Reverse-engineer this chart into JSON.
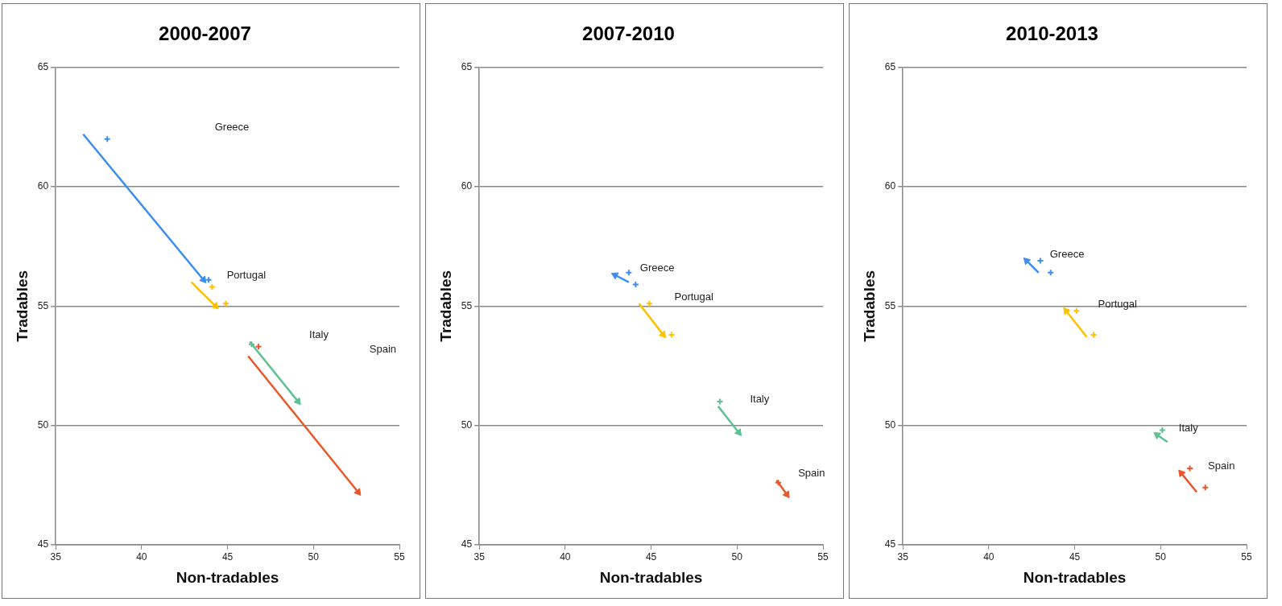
{
  "chart_data": [
    {
      "type": "scatter",
      "title": "2000-2007",
      "xlabel": "Non-tradables",
      "ylabel": "Tradables",
      "xlim": [
        35,
        55
      ],
      "xticks": [
        35,
        40,
        45,
        50,
        55
      ],
      "ylim": [
        45,
        65
      ],
      "yticks": [
        45,
        50,
        55,
        60,
        65
      ],
      "grid": "y",
      "line_style": "solid",
      "series": [
        {
          "type": "line",
          "name": "Greece",
          "color": "#3d8ef0",
          "x": [
            36.6,
            43.6
          ],
          "values": [
            62.2,
            56.1
          ]
        },
        {
          "type": "scatter",
          "marker": "cross",
          "color": "#3d8ef0",
          "x": [
            38.0,
            43.9
          ],
          "values": [
            62.0,
            56.1
          ]
        },
        {
          "type": "line",
          "name": "Portugal",
          "color": "#ffc000",
          "x": [
            42.9,
            44.3
          ],
          "values": [
            56.0,
            55.0
          ]
        },
        {
          "type": "scatter",
          "marker": "cross",
          "color": "#ffc000",
          "x": [
            44.1,
            44.9
          ],
          "values": [
            55.8,
            55.1
          ]
        },
        {
          "type": "line",
          "name": "Italy",
          "color": "#5fbf95",
          "x": [
            46.3,
            49.1
          ],
          "values": [
            53.5,
            51.0
          ]
        },
        {
          "type": "scatter",
          "marker": "cross",
          "color": "#5fbf95",
          "x": [
            46.4
          ],
          "values": [
            53.4
          ]
        },
        {
          "type": "line",
          "name": "Spain",
          "color": "#e8582a",
          "x": [
            46.2,
            52.6
          ],
          "values": [
            52.9,
            47.2
          ]
        },
        {
          "type": "scatter",
          "marker": "cross",
          "color": "#e8582a",
          "x": [
            46.8
          ],
          "values": [
            53.3
          ]
        }
      ]
    },
    {
      "type": "scatter",
      "title": "2007-2010",
      "xlabel": "Non-tradables",
      "ylabel": "Tradables",
      "xlim": [
        35,
        55
      ],
      "xticks": [
        35,
        40,
        45,
        50,
        55
      ],
      "ylim": [
        45,
        65
      ],
      "yticks": [
        45,
        50,
        55,
        60,
        65
      ],
      "grid": "y",
      "line_style": "solid",
      "series": [
        {
          "type": "line",
          "name": "Greece",
          "color": "#3d8ef0",
          "x": [
            43.7,
            42.9
          ],
          "values": [
            56.0,
            56.3
          ]
        },
        {
          "type": "scatter",
          "marker": "cross",
          "color": "#3d8ef0",
          "x": [
            43.7,
            44.1
          ],
          "values": [
            56.4,
            55.9
          ]
        },
        {
          "type": "line",
          "name": "Portugal",
          "color": "#ffc000",
          "x": [
            44.3,
            45.7
          ],
          "values": [
            55.1,
            53.8
          ]
        },
        {
          "type": "scatter",
          "marker": "cross",
          "color": "#ffc000",
          "x": [
            44.9,
            46.2
          ],
          "values": [
            55.1,
            53.8
          ]
        },
        {
          "type": "line",
          "name": "Italy",
          "color": "#5fbf95",
          "x": [
            48.9,
            50.1
          ],
          "values": [
            50.8,
            49.7
          ]
        },
        {
          "type": "scatter",
          "marker": "cross",
          "color": "#5fbf95",
          "x": [
            49.0
          ],
          "values": [
            51.0
          ]
        },
        {
          "type": "line",
          "name": "Spain",
          "color": "#e8582a",
          "x": [
            52.3,
            52.9
          ],
          "values": [
            47.7,
            47.1
          ]
        },
        {
          "type": "scatter",
          "marker": "cross",
          "color": "#e8582a",
          "x": [
            52.4
          ],
          "values": [
            47.6
          ]
        }
      ]
    },
    {
      "type": "scatter",
      "title": "2010-2013",
      "xlabel": "Non-tradables",
      "ylabel": "Tradables",
      "xlim": [
        35,
        55
      ],
      "xticks": [
        35,
        40,
        45,
        50,
        55
      ],
      "ylim": [
        45,
        65
      ],
      "yticks": [
        45,
        50,
        55,
        60,
        65
      ],
      "grid": "y",
      "line_style": "solid",
      "series": [
        {
          "type": "line",
          "name": "Greece",
          "color": "#3d8ef0",
          "x": [
            42.9,
            42.2
          ],
          "values": [
            56.4,
            56.9
          ]
        },
        {
          "type": "scatter",
          "marker": "cross",
          "color": "#3d8ef0",
          "x": [
            43.0,
            43.6
          ],
          "values": [
            56.9,
            56.4
          ]
        },
        {
          "type": "line",
          "name": "Portugal",
          "color": "#ffc000",
          "x": [
            45.7,
            44.5
          ],
          "values": [
            53.7,
            54.8
          ]
        },
        {
          "type": "scatter",
          "marker": "cross",
          "color": "#ffc000",
          "x": [
            45.1,
            46.1
          ],
          "values": [
            54.8,
            53.8
          ]
        },
        {
          "type": "line",
          "name": "Italy",
          "color": "#5fbf95",
          "x": [
            50.4,
            49.8
          ],
          "values": [
            49.3,
            49.6
          ]
        },
        {
          "type": "scatter",
          "marker": "cross",
          "color": "#5fbf95",
          "x": [
            50.1
          ],
          "values": [
            49.8
          ]
        },
        {
          "type": "line",
          "name": "Spain",
          "color": "#e8582a",
          "x": [
            52.1,
            51.2
          ],
          "values": [
            47.2,
            48.0
          ]
        },
        {
          "type": "scatter",
          "marker": "cross",
          "color": "#e8582a",
          "x": [
            51.7,
            52.6
          ],
          "values": [
            48.2,
            47.4
          ]
        }
      ]
    }
  ]
}
